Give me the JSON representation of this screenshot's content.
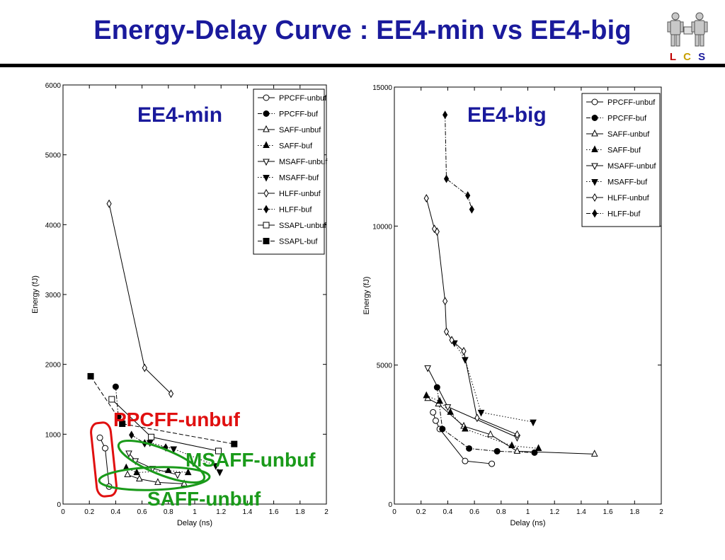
{
  "slide": {
    "title": "Energy-Delay Curve : EE4-min vs EE4-big",
    "logo": {
      "letters": [
        "L",
        "C",
        "S"
      ],
      "colors": [
        "#c00000",
        "#c8a000",
        "#1a1a9c"
      ]
    }
  },
  "annotations": [
    {
      "text": "PPCFF-unbuf",
      "color": "#e01010"
    },
    {
      "text": "MSAFF-unbuf",
      "color": "#1a9a1a"
    },
    {
      "text": "SAFF-unbuf",
      "color": "#1a9a1a"
    }
  ],
  "chart_data": [
    {
      "type": "line",
      "panel_label": "EE4-min",
      "xlabel": "Delay (ns)",
      "ylabel": "Energy (fJ)",
      "xlim": [
        0,
        2
      ],
      "ylim": [
        0,
        6000
      ],
      "xticks": [
        0,
        0.2,
        0.4,
        0.6,
        0.8,
        1,
        1.2,
        1.4,
        1.6,
        1.8,
        2
      ],
      "xtick_labels": [
        "0",
        "0.2",
        "0.4",
        "0.6",
        "0.8",
        "1",
        "1.2",
        "1.4",
        "1.6",
        "1.8",
        "2"
      ],
      "yticks": [
        0,
        1000,
        2000,
        3000,
        4000,
        5000,
        6000
      ],
      "ytick_labels": [
        "0",
        "1000",
        "2000",
        "3000",
        "4000",
        "5000",
        "6000"
      ],
      "grid": false,
      "legend": "top-right",
      "series": [
        {
          "name": "PPCFF-unbuf",
          "marker": "circle-open",
          "dash": "solid",
          "x": [
            0.28,
            0.32,
            0.35
          ],
          "y": [
            950,
            800,
            250
          ]
        },
        {
          "name": "PPCFF-buf",
          "marker": "circle-filled",
          "dash": "dashdot",
          "x": [
            0.4,
            0.42
          ],
          "y": [
            1680,
            1250
          ]
        },
        {
          "name": "SAFF-unbuf",
          "marker": "triangle-up-open",
          "dash": "solid",
          "x": [
            0.49,
            0.58,
            0.72,
            0.92
          ],
          "y": [
            420,
            360,
            310,
            290
          ]
        },
        {
          "name": "SAFF-buf",
          "marker": "triangle-up-filled",
          "dash": "dotted",
          "x": [
            0.48,
            0.56,
            0.8,
            0.95
          ],
          "y": [
            520,
            450,
            480,
            450
          ]
        },
        {
          "name": "MSAFF-unbuf",
          "marker": "triangle-down-open",
          "dash": "solid",
          "x": [
            0.5,
            0.55,
            0.68,
            0.87
          ],
          "y": [
            730,
            620,
            510,
            420
          ]
        },
        {
          "name": "MSAFF-buf",
          "marker": "triangle-down-filled",
          "dash": "dotted",
          "x": [
            0.66,
            0.84,
            1.16,
            1.19
          ],
          "y": [
            880,
            790,
            550,
            460
          ]
        },
        {
          "name": "HLFF-unbuf",
          "marker": "diamond-open",
          "dash": "solid",
          "x": [
            0.35,
            0.62,
            0.82
          ],
          "y": [
            4300,
            1950,
            1580
          ]
        },
        {
          "name": "HLFF-buf",
          "marker": "diamond-filled",
          "dash": "dashdot",
          "x": [
            0.52,
            0.62,
            0.78
          ],
          "y": [
            990,
            870,
            810
          ]
        },
        {
          "name": "SSAPL-unbuf",
          "marker": "square-open",
          "dash": "solid",
          "x": [
            0.37,
            0.67,
            1.18
          ],
          "y": [
            1500,
            960,
            760
          ]
        },
        {
          "name": "SSAPL-buf",
          "marker": "square-filled",
          "dash": "dashed",
          "x": [
            0.21,
            0.45,
            1.3
          ],
          "y": [
            1830,
            1150,
            860
          ]
        }
      ]
    },
    {
      "type": "line",
      "panel_label": "EE4-big",
      "xlabel": "Delay (ns)",
      "ylabel": "Energy (fJ)",
      "xlim": [
        0,
        2
      ],
      "ylim": [
        0,
        15000
      ],
      "xticks": [
        0,
        0.2,
        0.4,
        0.6,
        0.8,
        1,
        1.2,
        1.4,
        1.6,
        1.8,
        2
      ],
      "xtick_labels": [
        "0",
        "0.2",
        "0.4",
        "0.6",
        "0.8",
        "1",
        "1.2",
        "1.4",
        "1.6",
        "1.8",
        "2"
      ],
      "yticks": [
        0,
        5000,
        10000,
        15000
      ],
      "ytick_labels": [
        "0",
        "5000",
        "10000",
        "15000"
      ],
      "grid": false,
      "legend": "top-right",
      "series": [
        {
          "name": "PPCFF-unbuf",
          "marker": "circle-open",
          "dash": "solid",
          "x": [
            0.29,
            0.31,
            0.34,
            0.53,
            0.73
          ],
          "y": [
            3300,
            3000,
            2700,
            1550,
            1450
          ]
        },
        {
          "name": "PPCFF-buf",
          "marker": "circle-filled",
          "dash": "dashdot",
          "x": [
            0.32,
            0.36,
            0.56,
            0.77,
            1.05
          ],
          "y": [
            4200,
            2700,
            2000,
            1900,
            1850
          ]
        },
        {
          "name": "SAFF-unbuf",
          "marker": "triangle-up-open",
          "dash": "solid",
          "x": [
            0.25,
            0.33,
            0.52,
            0.72,
            0.92,
            1.5
          ],
          "y": [
            3800,
            3600,
            2800,
            2500,
            1900,
            1800
          ]
        },
        {
          "name": "SAFF-buf",
          "marker": "triangle-up-filled",
          "dash": "dotted",
          "x": [
            0.24,
            0.34,
            0.42,
            0.53,
            0.88,
            1.08
          ],
          "y": [
            3900,
            3700,
            3300,
            2700,
            2100,
            2000
          ]
        },
        {
          "name": "MSAFF-unbuf",
          "marker": "triangle-down-open",
          "dash": "solid",
          "x": [
            0.25,
            0.4,
            0.92
          ],
          "y": [
            4900,
            3500,
            2400
          ]
        },
        {
          "name": "MSAFF-buf",
          "marker": "triangle-down-filled",
          "dash": "dotted",
          "x": [
            0.45,
            0.53,
            0.65,
            1.04
          ],
          "y": [
            5800,
            5200,
            3300,
            2950
          ]
        },
        {
          "name": "HLFF-unbuf",
          "marker": "diamond-open",
          "dash": "solid",
          "x": [
            0.24,
            0.3,
            0.32,
            0.38,
            0.39,
            0.43,
            0.52,
            0.62,
            0.92
          ],
          "y": [
            11000,
            9900,
            9800,
            7300,
            6200,
            5900,
            5500,
            3100,
            2500
          ]
        },
        {
          "name": "HLFF-buf",
          "marker": "diamond-filled",
          "dash": "dashdot",
          "x": [
            0.38,
            0.39,
            0.55,
            0.58
          ],
          "y": [
            14000,
            11700,
            11100,
            10600
          ]
        }
      ]
    }
  ]
}
